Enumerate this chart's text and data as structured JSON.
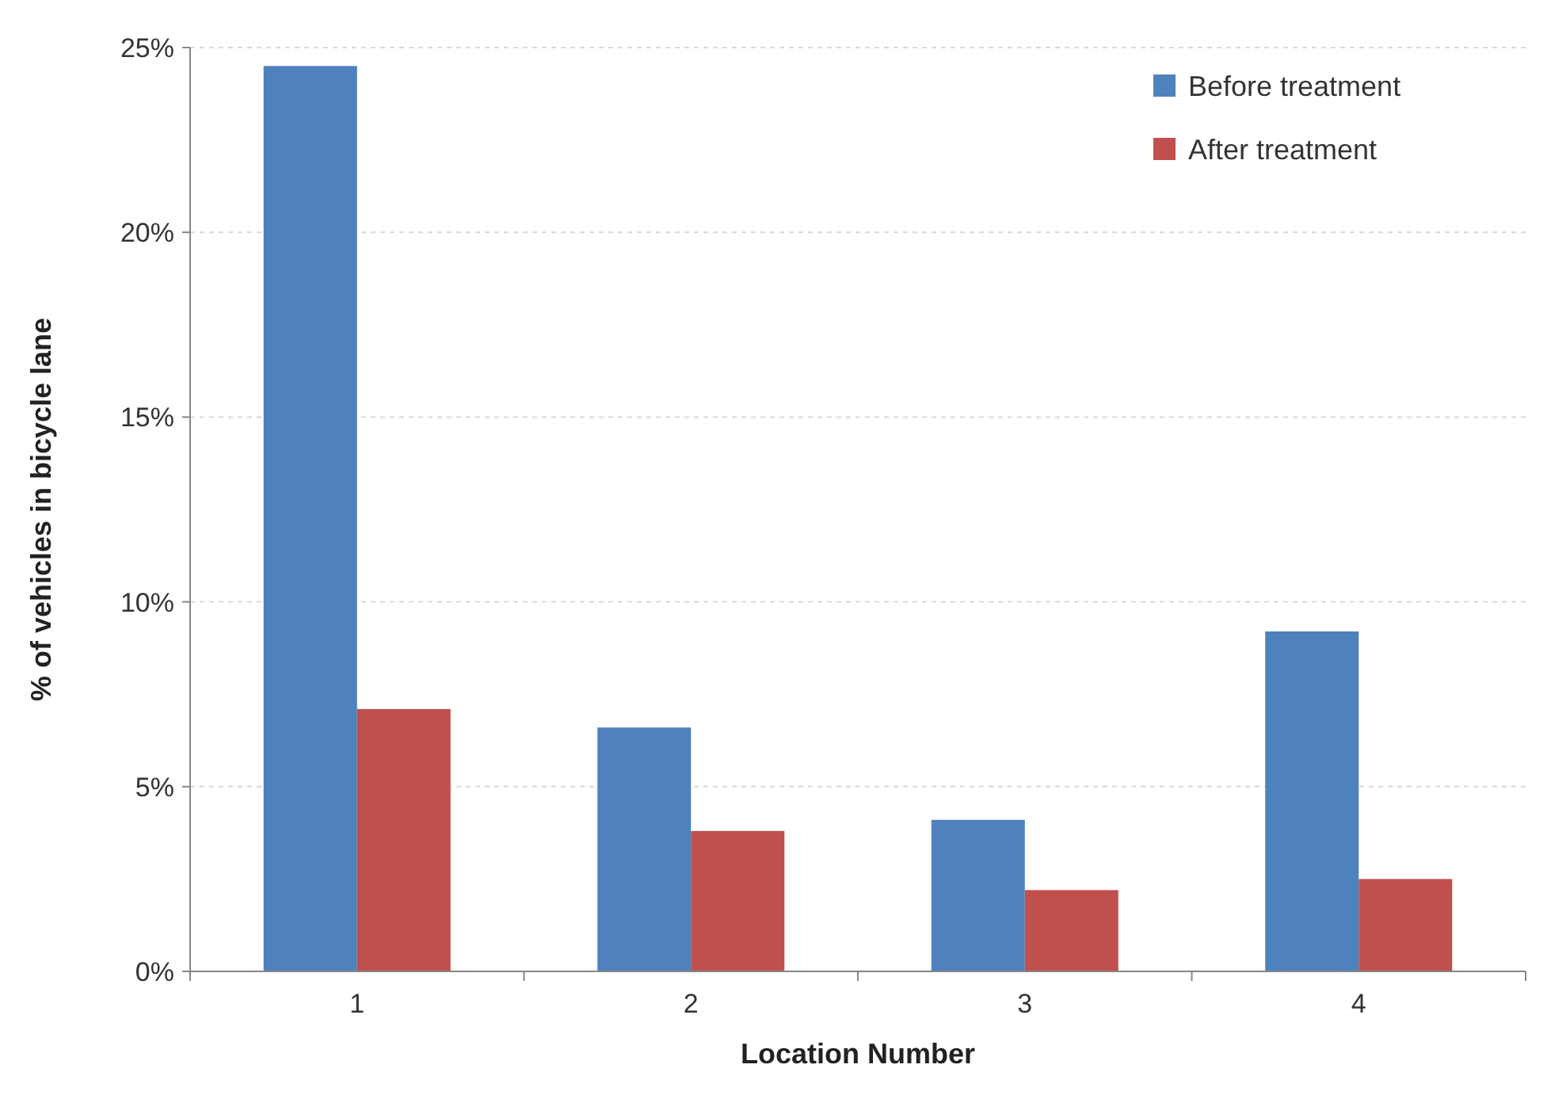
{
  "chart_data": {
    "type": "bar",
    "xlabel": "Location Number",
    "ylabel": "% of vehicles in bicycle lane",
    "categories": [
      "1",
      "2",
      "3",
      "4"
    ],
    "series": [
      {
        "name": "Before treatment",
        "color": "#4f81bd",
        "values": [
          24.5,
          6.6,
          4.1,
          9.2
        ]
      },
      {
        "name": "After treatment",
        "color": "#c0504d",
        "values": [
          7.1,
          3.8,
          2.2,
          2.5
        ]
      }
    ],
    "ylim": [
      0,
      25
    ],
    "yticks": [
      {
        "value": 0,
        "label": "0%"
      },
      {
        "value": 5,
        "label": "5%"
      },
      {
        "value": 10,
        "label": "10%"
      },
      {
        "value": 15,
        "label": "15%"
      },
      {
        "value": 20,
        "label": "20%"
      },
      {
        "value": 25,
        "label": "25%"
      }
    ],
    "grid": "y",
    "legend": "top right"
  }
}
